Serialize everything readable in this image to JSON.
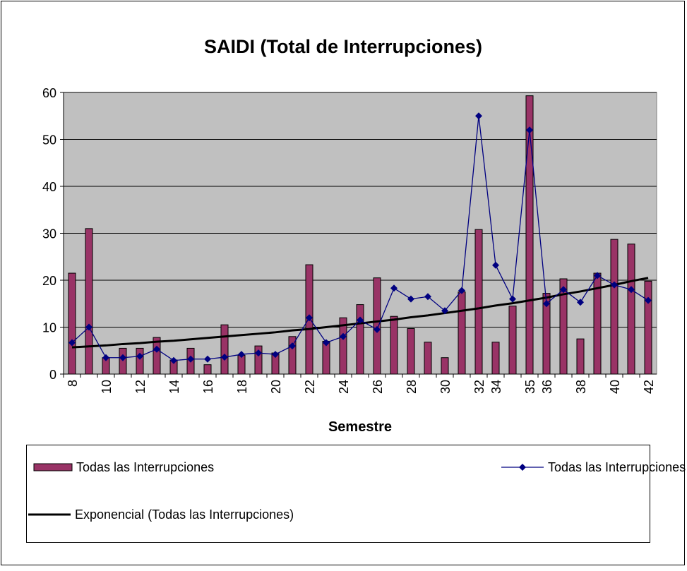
{
  "chart_data": {
    "type": "bar_line",
    "title": "SAIDI (Total de Interrupciones)",
    "x_label": "Semestre",
    "categories": [
      "8",
      null,
      "10",
      null,
      "12",
      null,
      "14",
      null,
      "16",
      null,
      "18",
      null,
      "20",
      null,
      "22",
      null,
      "24",
      null,
      "26",
      null,
      "28",
      null,
      "30",
      null,
      "32",
      "34",
      null,
      "35",
      "36",
      null,
      "38",
      null,
      "40",
      null,
      "42"
    ],
    "series": [
      {
        "name": "Todas las Interrupciones",
        "type": "bar",
        "color": "#993366",
        "values": [
          21.5,
          31,
          3.5,
          5.5,
          5.5,
          7.8,
          3,
          5.5,
          2,
          10.5,
          4,
          6,
          4.5,
          8,
          23.3,
          7,
          12,
          14.8,
          20.5,
          12.3,
          9.7,
          6.8,
          3.5,
          17.5,
          30.8,
          6.8,
          14.5,
          59.3,
          17.2,
          20.3,
          7.5,
          21.5,
          28.7,
          27.7,
          19.8
        ]
      },
      {
        "name": "Todas las Interrupciones (SH)",
        "type": "line",
        "marker": "diamond",
        "color": "#000080",
        "values": [
          6.7,
          10,
          3.5,
          3.5,
          3.8,
          5.3,
          2.9,
          3.2,
          3.2,
          3.6,
          4.2,
          4.5,
          4.2,
          6,
          12,
          6.7,
          8,
          11.5,
          9.5,
          18.3,
          16,
          16.5,
          13.5,
          17.8,
          55,
          23.2,
          16,
          52,
          15,
          18,
          15.3,
          21,
          19,
          18,
          15.7
        ]
      },
      {
        "name": "Exponencial (Todas las Interrupciones)",
        "type": "trend",
        "color": "#000000",
        "values": [
          5.7,
          5.9,
          6.1,
          6.4,
          6.6,
          6.9,
          7.1,
          7.4,
          7.7,
          8.0,
          8.3,
          8.6,
          8.9,
          9.3,
          9.6,
          10.0,
          10.4,
          10.8,
          11.2,
          11.6,
          12.1,
          12.5,
          13.0,
          13.5,
          14.0,
          14.6,
          15.1,
          15.7,
          16.3,
          17.0,
          17.6,
          18.3,
          19.0,
          19.8,
          20.5
        ]
      }
    ],
    "ylim": [
      0,
      60
    ],
    "yticks": [
      0,
      10,
      20,
      30,
      40,
      50,
      60
    ],
    "grid": true,
    "legend": "bottom"
  }
}
